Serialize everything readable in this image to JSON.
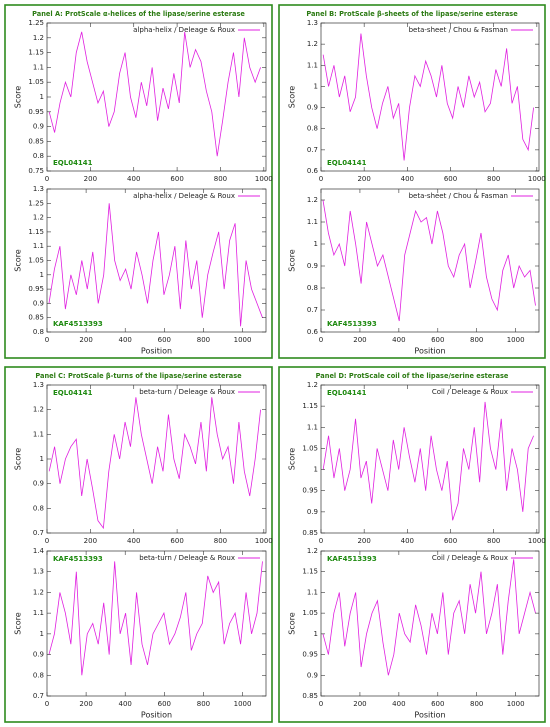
{
  "chart_data": [
    {
      "type": "line",
      "title": "Panel A: ProtScale α-helices of the lipase/serine esterase",
      "label": "EQL04141",
      "label_corner": "bottom-left",
      "legend": "upper right",
      "ylabel": "Score",
      "x": [
        10,
        35,
        60,
        85,
        110,
        135,
        160,
        185,
        210,
        235,
        260,
        285,
        310,
        335,
        360,
        385,
        410,
        435,
        460,
        485,
        510,
        535,
        560,
        585,
        610,
        635,
        660,
        685,
        710,
        735,
        760,
        785,
        810,
        835,
        860,
        885,
        910,
        935,
        960,
        985
      ],
      "series": [
        {
          "name": "alpha-helix / Deleage & Roux",
          "color": "#e020e0",
          "values": [
            0.95,
            0.88,
            0.98,
            1.05,
            1.0,
            1.15,
            1.22,
            1.12,
            1.05,
            0.98,
            1.02,
            0.9,
            0.95,
            1.08,
            1.15,
            1.0,
            0.93,
            1.05,
            0.97,
            1.1,
            0.92,
            1.03,
            0.96,
            1.08,
            0.98,
            1.22,
            1.1,
            1.16,
            1.12,
            1.02,
            0.95,
            0.8,
            0.92,
            1.05,
            1.15,
            1.0,
            1.2,
            1.1,
            1.05,
            1.1
          ]
        }
      ],
      "xlim": [
        0,
        1010
      ],
      "xticks": [
        0,
        200,
        400,
        600,
        800,
        1000
      ],
      "ylim": [
        0.75,
        1.25
      ],
      "yticks": [
        0.75,
        0.8,
        0.85,
        0.9,
        0.95,
        1,
        1.05,
        1.1,
        1.15,
        1.2,
        1.25
      ]
    },
    {
      "type": "line",
      "label": "KAF4513393",
      "label_corner": "bottom-left",
      "legend": "upper right",
      "ylabel": "Score",
      "xlabel": "Position",
      "x": [
        10,
        38,
        66,
        94,
        122,
        150,
        178,
        206,
        234,
        262,
        290,
        318,
        346,
        374,
        402,
        430,
        458,
        486,
        514,
        542,
        570,
        598,
        626,
        654,
        682,
        710,
        738,
        766,
        794,
        822,
        850,
        878,
        906,
        934,
        962,
        990,
        1018,
        1046,
        1074,
        1102
      ],
      "series": [
        {
          "name": "alpha-helix / Deleage & Roux",
          "color": "#e020e0",
          "values": [
            0.9,
            1.02,
            1.1,
            0.88,
            1.0,
            0.93,
            1.05,
            0.95,
            1.08,
            0.9,
            1.0,
            1.25,
            1.05,
            0.98,
            1.02,
            0.95,
            1.08,
            1.0,
            0.9,
            1.05,
            1.15,
            0.93,
            1.0,
            1.1,
            0.88,
            1.12,
            0.95,
            1.05,
            0.85,
            1.0,
            1.08,
            1.15,
            0.95,
            1.12,
            1.18,
            0.82,
            1.05,
            0.95,
            0.9,
            0.85
          ]
        }
      ],
      "xlim": [
        0,
        1120
      ],
      "xticks": [
        0,
        200,
        400,
        600,
        800,
        1000
      ],
      "ylim": [
        0.8,
        1.3
      ],
      "yticks": [
        0.8,
        0.85,
        0.9,
        0.95,
        1,
        1.05,
        1.1,
        1.15,
        1.2,
        1.25,
        1.3
      ]
    },
    {
      "type": "line",
      "title": "Panel B: ProtScale β-sheets of the lipase/serine esterase",
      "label": "EQL04141",
      "label_corner": "bottom-left",
      "legend": "upper right",
      "ylabel": "Score",
      "x": [
        10,
        35,
        60,
        85,
        110,
        135,
        160,
        185,
        210,
        235,
        260,
        285,
        310,
        335,
        360,
        385,
        410,
        435,
        460,
        485,
        510,
        535,
        560,
        585,
        610,
        635,
        660,
        685,
        710,
        735,
        760,
        785,
        810,
        835,
        860,
        885,
        910,
        935,
        960,
        985
      ],
      "series": [
        {
          "name": "beta-sheet / Chou & Fasman",
          "color": "#e020e0",
          "values": [
            1.15,
            1.0,
            1.1,
            0.95,
            1.05,
            0.88,
            0.95,
            1.25,
            1.05,
            0.9,
            0.8,
            0.92,
            1.0,
            0.85,
            0.92,
            0.65,
            0.9,
            1.05,
            1.0,
            1.12,
            1.05,
            0.95,
            1.1,
            0.92,
            0.85,
            1.0,
            0.9,
            1.05,
            0.95,
            1.02,
            0.88,
            0.92,
            1.08,
            1.0,
            1.18,
            0.92,
            1.0,
            0.75,
            0.7,
            0.9
          ]
        }
      ],
      "xlim": [
        0,
        1010
      ],
      "xticks": [
        0,
        200,
        400,
        600,
        800,
        1000
      ],
      "ylim": [
        0.6,
        1.3
      ],
      "yticks": [
        0.6,
        0.7,
        0.8,
        0.9,
        1,
        1.1,
        1.2,
        1.3
      ]
    },
    {
      "type": "line",
      "label": "KAF4513393",
      "label_corner": "bottom-left",
      "legend": "upper right",
      "ylabel": "Score",
      "xlabel": "Position",
      "x": [
        10,
        38,
        66,
        94,
        122,
        150,
        178,
        206,
        234,
        262,
        290,
        318,
        346,
        374,
        402,
        430,
        458,
        486,
        514,
        542,
        570,
        598,
        626,
        654,
        682,
        710,
        738,
        766,
        794,
        822,
        850,
        878,
        906,
        934,
        962,
        990,
        1018,
        1046,
        1074,
        1102
      ],
      "series": [
        {
          "name": "beta-sheet / Chou & Fasman",
          "color": "#e020e0",
          "values": [
            1.2,
            1.05,
            0.95,
            1.0,
            0.9,
            1.15,
            1.0,
            0.82,
            1.1,
            1.0,
            0.9,
            0.95,
            0.85,
            0.75,
            0.65,
            0.95,
            1.05,
            1.15,
            1.1,
            1.12,
            1.0,
            1.15,
            1.05,
            0.9,
            0.85,
            0.95,
            1.0,
            0.8,
            0.92,
            1.05,
            0.85,
            0.75,
            0.7,
            0.88,
            0.95,
            0.8,
            0.9,
            0.85,
            0.88,
            0.72
          ]
        }
      ],
      "xlim": [
        0,
        1120
      ],
      "xticks": [
        0,
        200,
        400,
        600,
        800,
        1000
      ],
      "ylim": [
        0.6,
        1.25
      ],
      "yticks": [
        0.6,
        0.7,
        0.8,
        0.9,
        1,
        1.1,
        1.2
      ]
    },
    {
      "type": "line",
      "title": "Panel C: ProtScale β-turns of the lipase/serine esterase",
      "label": "EQL04141",
      "label_corner": "top-left",
      "legend": "upper right",
      "ylabel": "Score",
      "x": [
        10,
        35,
        60,
        85,
        110,
        135,
        160,
        185,
        210,
        235,
        260,
        285,
        310,
        335,
        360,
        385,
        410,
        435,
        460,
        485,
        510,
        535,
        560,
        585,
        610,
        635,
        660,
        685,
        710,
        735,
        760,
        785,
        810,
        835,
        860,
        885,
        910,
        935,
        960,
        985
      ],
      "series": [
        {
          "name": "beta-turn / Deleage & Roux",
          "color": "#e020e0",
          "values": [
            0.95,
            1.05,
            0.9,
            1.0,
            1.05,
            1.08,
            0.85,
            1.0,
            0.88,
            0.75,
            0.72,
            0.95,
            1.1,
            1.0,
            1.15,
            1.05,
            1.25,
            1.1,
            1.0,
            0.9,
            1.05,
            0.95,
            1.18,
            1.0,
            0.92,
            1.1,
            1.05,
            0.98,
            1.15,
            0.95,
            1.25,
            1.1,
            1.0,
            1.05,
            0.9,
            1.15,
            0.95,
            0.85,
            1.0,
            1.2
          ]
        }
      ],
      "xlim": [
        0,
        1010
      ],
      "xticks": [
        0,
        200,
        400,
        600,
        800,
        1000
      ],
      "ylim": [
        0.7,
        1.3
      ],
      "yticks": [
        0.7,
        0.8,
        0.9,
        1,
        1.1,
        1.2,
        1.3
      ]
    },
    {
      "type": "line",
      "label": "KAF4513393",
      "label_corner": "top-left",
      "legend": "upper right",
      "ylabel": "Score",
      "xlabel": "Position",
      "x": [
        10,
        38,
        66,
        94,
        122,
        150,
        178,
        206,
        234,
        262,
        290,
        318,
        346,
        374,
        402,
        430,
        458,
        486,
        514,
        542,
        570,
        598,
        626,
        654,
        682,
        710,
        738,
        766,
        794,
        822,
        850,
        878,
        906,
        934,
        962,
        990,
        1018,
        1046,
        1074,
        1102
      ],
      "series": [
        {
          "name": "beta-turn / Deleage & Roux",
          "color": "#e020e0",
          "values": [
            0.9,
            1.0,
            1.2,
            1.1,
            0.95,
            1.3,
            0.8,
            1.0,
            1.05,
            0.95,
            1.15,
            0.9,
            1.35,
            1.0,
            1.1,
            0.85,
            1.2,
            0.95,
            0.85,
            1.0,
            1.05,
            1.1,
            0.95,
            1.0,
            1.08,
            1.2,
            0.92,
            1.0,
            1.05,
            1.28,
            1.2,
            1.25,
            0.95,
            1.05,
            1.1,
            0.95,
            1.2,
            1.0,
            1.1,
            1.35
          ]
        }
      ],
      "xlim": [
        0,
        1120
      ],
      "xticks": [
        0,
        200,
        400,
        600,
        800,
        1000
      ],
      "ylim": [
        0.7,
        1.4
      ],
      "yticks": [
        0.7,
        0.8,
        0.9,
        1,
        1.1,
        1.2,
        1.3,
        1.4
      ]
    },
    {
      "type": "line",
      "title": "Panel D: ProtScale coil of the lipase/serine esterase",
      "label": "EQL04141",
      "label_corner": "top-left",
      "legend": "upper right",
      "ylabel": "Score",
      "x": [
        10,
        35,
        60,
        85,
        110,
        135,
        160,
        185,
        210,
        235,
        260,
        285,
        310,
        335,
        360,
        385,
        410,
        435,
        460,
        485,
        510,
        535,
        560,
        585,
        610,
        635,
        660,
        685,
        710,
        735,
        760,
        785,
        810,
        835,
        860,
        885,
        910,
        935,
        960,
        985
      ],
      "series": [
        {
          "name": "Coil / Deleage & Roux",
          "color": "#e020e0",
          "values": [
            1.0,
            1.08,
            0.98,
            1.05,
            0.95,
            1.0,
            1.12,
            0.98,
            1.02,
            0.92,
            1.05,
            1.0,
            0.95,
            1.07,
            1.0,
            1.1,
            1.03,
            0.97,
            1.05,
            0.95,
            1.08,
            1.0,
            0.95,
            1.02,
            0.88,
            0.92,
            1.05,
            1.0,
            1.1,
            0.97,
            1.16,
            1.05,
            1.0,
            1.12,
            0.95,
            1.05,
            1.0,
            0.9,
            1.05,
            1.08
          ]
        }
      ],
      "xlim": [
        0,
        1010
      ],
      "xticks": [
        0,
        200,
        400,
        600,
        800,
        1000
      ],
      "ylim": [
        0.85,
        1.2
      ],
      "yticks": [
        0.85,
        0.9,
        0.95,
        1,
        1.05,
        1.1,
        1.15,
        1.2
      ]
    },
    {
      "type": "line",
      "label": "KAF4513393",
      "label_corner": "top-left",
      "legend": "upper right",
      "ylabel": "Score",
      "xlabel": "Position",
      "x": [
        10,
        38,
        66,
        94,
        122,
        150,
        178,
        206,
        234,
        262,
        290,
        318,
        346,
        374,
        402,
        430,
        458,
        486,
        514,
        542,
        570,
        598,
        626,
        654,
        682,
        710,
        738,
        766,
        794,
        822,
        850,
        878,
        906,
        934,
        962,
        990,
        1018,
        1046,
        1074,
        1102
      ],
      "series": [
        {
          "name": "Coil / Deleage & Roux",
          "color": "#e020e0",
          "values": [
            1.0,
            0.95,
            1.05,
            1.1,
            0.97,
            1.05,
            1.1,
            0.92,
            1.0,
            1.05,
            1.08,
            0.98,
            0.9,
            0.95,
            1.05,
            1.0,
            0.98,
            1.07,
            1.02,
            0.95,
            1.05,
            1.0,
            1.1,
            0.95,
            1.05,
            1.08,
            1.0,
            1.12,
            1.05,
            1.15,
            1.0,
            1.05,
            1.12,
            0.95,
            1.08,
            1.18,
            1.0,
            1.05,
            1.1,
            1.05
          ]
        }
      ],
      "xlim": [
        0,
        1120
      ],
      "xticks": [
        0,
        200,
        400,
        600,
        800,
        1000
      ],
      "ylim": [
        0.85,
        1.2
      ],
      "yticks": [
        0.85,
        0.9,
        0.95,
        1,
        1.05,
        1.1,
        1.15,
        1.2
      ]
    }
  ]
}
